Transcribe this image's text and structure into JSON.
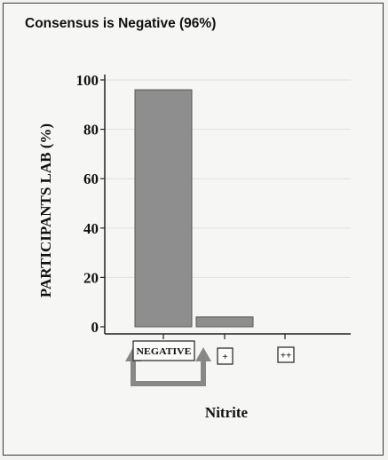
{
  "chart_data": {
    "type": "bar",
    "title": "Consensus is Negative (96%)",
    "ylabel": "PARTICIPANTS LAB (%)",
    "xlabel": "Nitrite",
    "categories": [
      "NEGATIVE",
      "+",
      "++"
    ],
    "values": [
      96,
      4,
      0
    ],
    "ylim": [
      0,
      100
    ],
    "yticks": [
      0,
      20,
      40,
      60,
      80,
      100
    ],
    "consensus_category": "NEGATIVE",
    "colors": {
      "bar": "#8e8e8e",
      "bar_edge": "#555555",
      "arrow": "#888888"
    }
  }
}
